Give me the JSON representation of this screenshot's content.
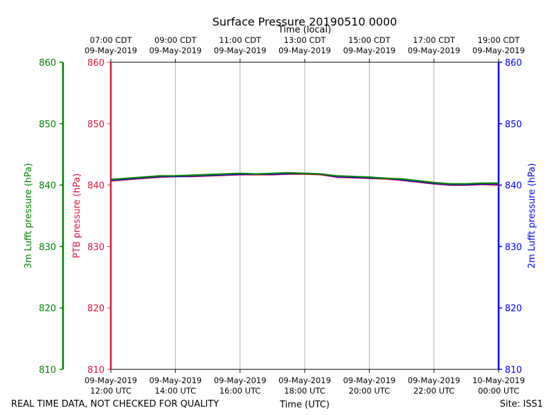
{
  "chart_data": {
    "type": "line",
    "title": "Surface Pressure 20190510 0000",
    "top_axis_label": "Time (local)",
    "bottom_axis_label": "Time (UTC)",
    "left_outer_ylabel": "3m Lufft pressure (hPa)",
    "left_inner_ylabel": "PTB pressure (hPa)",
    "right_ylabel": "2m Lufft pressure (hPa)",
    "ylim": [
      810,
      860
    ],
    "yticks": [
      810,
      820,
      830,
      840,
      850,
      860
    ],
    "xlim_hours_utc": [
      12,
      24
    ],
    "grid": "vertical",
    "bottom_ticks": [
      {
        "hour": 12,
        "date": "09-May-2019",
        "time": "12:00 UTC"
      },
      {
        "hour": 14,
        "date": "09-May-2019",
        "time": "14:00 UTC"
      },
      {
        "hour": 16,
        "date": "09-May-2019",
        "time": "16:00 UTC"
      },
      {
        "hour": 18,
        "date": "09-May-2019",
        "time": "18:00 UTC"
      },
      {
        "hour": 20,
        "date": "09-May-2019",
        "time": "20:00 UTC"
      },
      {
        "hour": 22,
        "date": "09-May-2019",
        "time": "22:00 UTC"
      },
      {
        "hour": 24,
        "date": "10-May-2019",
        "time": "00:00 UTC"
      }
    ],
    "top_ticks": [
      {
        "hour": 12,
        "time": "07:00 CDT",
        "date": "09-May-2019"
      },
      {
        "hour": 14,
        "time": "09:00 CDT",
        "date": "09-May-2019"
      },
      {
        "hour": 16,
        "time": "11:00 CDT",
        "date": "09-May-2019"
      },
      {
        "hour": 18,
        "time": "13:00 CDT",
        "date": "09-May-2019"
      },
      {
        "hour": 20,
        "time": "15:00 CDT",
        "date": "09-May-2019"
      },
      {
        "hour": 22,
        "time": "17:00 CDT",
        "date": "09-May-2019"
      },
      {
        "hour": 24,
        "time": "19:00 CDT",
        "date": "09-May-2019"
      }
    ],
    "x_hours": [
      12,
      12.5,
      13,
      13.5,
      14,
      14.5,
      15,
      15.5,
      16,
      16.5,
      17,
      17.5,
      18,
      18.5,
      19,
      19.5,
      20,
      20.5,
      21,
      21.5,
      22,
      22.5,
      23,
      23.5,
      24
    ],
    "series": [
      {
        "name": "PTB pressure",
        "axis": "left_inner",
        "color": "#dc143c",
        "values": [
          840.7,
          840.9,
          841.1,
          841.3,
          841.4,
          841.4,
          841.5,
          841.6,
          841.7,
          841.7,
          841.7,
          841.8,
          841.8,
          841.7,
          841.3,
          841.2,
          841.1,
          841.0,
          840.8,
          840.5,
          840.2,
          840.0,
          840.0,
          840.1,
          840.0
        ]
      },
      {
        "name": "2m Lufft pressure",
        "axis": "right",
        "color": "#0000ff",
        "values": [
          840.8,
          841.0,
          841.2,
          841.4,
          841.4,
          841.5,
          841.6,
          841.7,
          841.8,
          841.8,
          841.8,
          841.9,
          841.9,
          841.8,
          841.4,
          841.3,
          841.2,
          841.1,
          840.9,
          840.6,
          840.3,
          840.1,
          840.1,
          840.2,
          840.2
        ]
      },
      {
        "name": "3m Lufft pressure",
        "axis": "left_outer",
        "color": "#008000",
        "values": [
          840.9,
          841.1,
          841.3,
          841.5,
          841.5,
          841.6,
          841.7,
          841.8,
          841.9,
          841.8,
          841.9,
          842.0,
          841.9,
          841.8,
          841.5,
          841.4,
          841.3,
          841.1,
          841.0,
          840.7,
          840.4,
          840.2,
          840.2,
          840.3,
          840.3
        ]
      }
    ]
  },
  "footer": {
    "quality_note": "REAL TIME DATA, NOT CHECKED FOR QUALITY",
    "site": "Site: ISS1"
  },
  "colors": {
    "left_outer_axis": "#008000",
    "left_inner_axis": "#dc143c",
    "right_axis": "#0000ff",
    "grid": "#b0b0b0"
  }
}
